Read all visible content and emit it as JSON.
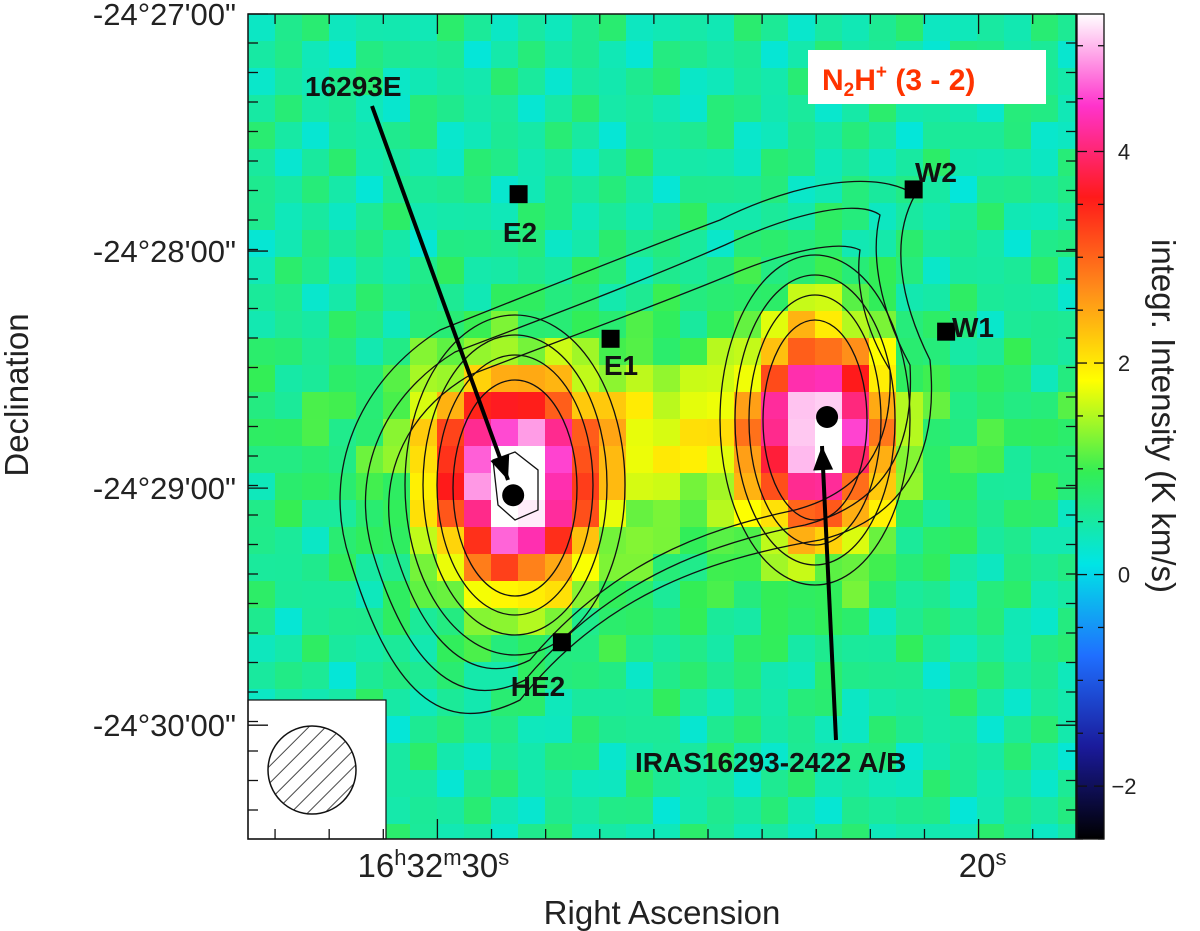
{
  "chart_data": {
    "type": "heatmap",
    "title": "",
    "species": {
      "main": "N",
      "sub": "2",
      "rest": "H",
      "sup": "+",
      "transition": " (3 - 2)"
    },
    "xlabel": "Right Ascension",
    "ylabel": "Declination",
    "colorbar_label": "integr. Intensity (K km/s)",
    "colorbar_range": [
      -2.5,
      5.3
    ],
    "colorbar_ticks": [
      "4",
      "2",
      "0",
      "−2"
    ],
    "colorbar_tick_values": [
      4,
      2,
      0,
      -2
    ],
    "y_ticks": [
      "-24°27'00\"",
      "-24°28'00\"",
      "-24°29'00\"",
      "-24°30'00\""
    ],
    "y_tick_values_arcmin": [
      27,
      28,
      29,
      30
    ],
    "x_ticks": [
      {
        "h": "16",
        "m": "32",
        "s": "30"
      },
      {
        "s": "20"
      }
    ],
    "x_tick_values_s": [
      30,
      20
    ],
    "x_range_s": [
      33.5,
      18.2
    ],
    "y_range_arcmin": [
      27.0,
      30.48
    ],
    "grid": "off",
    "legend": "none",
    "sources": [
      {
        "name": "E2",
        "ra_s": 28.5,
        "dec_min": 27.76,
        "marker": "square"
      },
      {
        "name": "E1",
        "ra_s": 26.8,
        "dec_min": 28.37,
        "marker": "square"
      },
      {
        "name": "HE2",
        "ra_s": 27.7,
        "dec_min": 29.65,
        "marker": "square"
      },
      {
        "name": "W2",
        "ra_s": 21.2,
        "dec_min": 27.74,
        "marker": "square"
      },
      {
        "name": "W1",
        "ra_s": 20.6,
        "dec_min": 28.34,
        "marker": "square"
      },
      {
        "name": "16293E",
        "ra_s": 28.6,
        "dec_min": 29.03,
        "marker": "circle"
      },
      {
        "name": "IRAS16293-2422 A/B",
        "ra_s": 22.8,
        "dec_min": 28.7,
        "marker": "circle"
      }
    ],
    "colors": {
      "background_level": "#33ee55",
      "scale": [
        "#000000",
        "#1a1a9a",
        "#1f6fff",
        "#00e5e5",
        "#33ee55",
        "#ffff00",
        "#ff8c1a",
        "#ff1a1a",
        "#ff33cc",
        "#ffffff"
      ],
      "species_label": "#ff3300"
    }
  }
}
